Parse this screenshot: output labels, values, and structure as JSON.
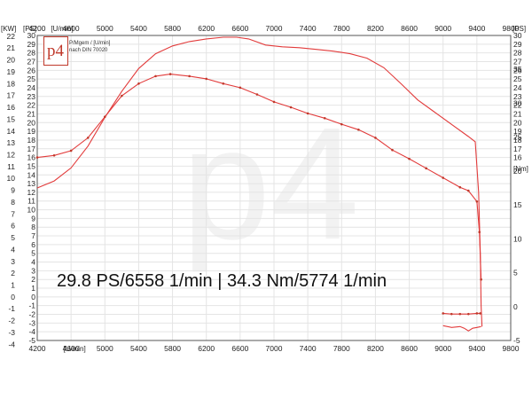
{
  "logo": {
    "mark": "p4",
    "line1": "P/Mgem / [U/min]",
    "line2": "nach DIN 70020"
  },
  "watermark": "p4",
  "summary_text": "29.8 PS/6558 1/min | 34.3 Nm/5774 1/min",
  "chart_data": {
    "type": "line",
    "x_unit_label": "[U/min]",
    "left_units": [
      "[KW]",
      "[PS]"
    ],
    "right_units": [
      "[PS]",
      "[Nm]"
    ],
    "x_ticks": [
      4200,
      4600,
      5000,
      5400,
      5800,
      6200,
      6600,
      7000,
      7400,
      7800,
      8200,
      8600,
      9000,
      9400,
      9800
    ],
    "xlim": [
      4200,
      9800
    ],
    "kw_ticks": [
      -4,
      -3,
      -2,
      -1,
      0,
      1,
      2,
      3,
      4,
      5,
      6,
      7,
      8,
      9,
      10,
      11,
      12,
      13,
      14,
      15,
      16,
      17,
      18,
      19,
      20,
      21,
      22
    ],
    "ps_ticks": [
      -5,
      -4,
      -3,
      -2,
      -1,
      0,
      1,
      2,
      3,
      4,
      5,
      6,
      7,
      8,
      9,
      10,
      11,
      12,
      13,
      14,
      15,
      16,
      17,
      18,
      19,
      20,
      21,
      22,
      23,
      24,
      25,
      26,
      27,
      28,
      29,
      30
    ],
    "ps_right_ticks": [
      16,
      17,
      18,
      19,
      20,
      21,
      22,
      23,
      24,
      25,
      26,
      27,
      28,
      29,
      30
    ],
    "nm_ticks": [
      -5,
      0,
      5,
      10,
      15,
      20,
      25,
      30,
      35
    ],
    "ps_range": [
      -5,
      30
    ],
    "nm_range": [
      -5,
      40
    ],
    "colors": {
      "curve": "#e23b3b",
      "marker": "#c0392b"
    },
    "series": [
      {
        "axis": "PS",
        "x": [
          4200,
          4400,
          4600,
          4800,
          5000,
          5200,
          5400,
          5600,
          5800,
          6000,
          6200,
          6400,
          6558,
          6700,
          6900,
          7100,
          7300,
          7500,
          7700,
          7900,
          8100,
          8300,
          8500,
          8700,
          8900,
          9100,
          9300,
          9380,
          9420,
          9440,
          9450,
          9460
        ],
        "values": [
          12.5,
          13.3,
          14.8,
          17.3,
          20.6,
          23.6,
          26.2,
          27.9,
          28.8,
          29.3,
          29.6,
          29.8,
          29.8,
          29.6,
          28.9,
          28.7,
          28.6,
          28.4,
          28.2,
          27.9,
          27.4,
          26.3,
          24.5,
          22.6,
          21.2,
          19.8,
          18.4,
          17.8,
          12.0,
          5.0,
          -1.0,
          -3.4
        ]
      },
      {
        "axis": "Nm",
        "x": [
          4200,
          4400,
          4600,
          4800,
          5000,
          5200,
          5400,
          5600,
          5774,
          6000,
          6200,
          6400,
          6600,
          6800,
          7000,
          7200,
          7400,
          7600,
          7800,
          8000,
          8200,
          8400,
          8600,
          8800,
          9000,
          9200,
          9300,
          9400,
          9430,
          9450
        ],
        "values": [
          22.0,
          22.3,
          23.0,
          24.9,
          28.0,
          31.1,
          32.9,
          34.0,
          34.3,
          34.0,
          33.6,
          32.9,
          32.3,
          31.3,
          30.2,
          29.4,
          28.5,
          27.8,
          26.9,
          26.1,
          24.9,
          23.1,
          21.8,
          20.4,
          19.0,
          17.6,
          17.1,
          15.5,
          11.0,
          4.0
        ]
      },
      {
        "axis": "Nm",
        "x": [
          9000,
          9100,
          9200,
          9300,
          9400,
          9440
        ],
        "values": [
          -1.0,
          -1.1,
          -1.1,
          -1.1,
          -1.0,
          -1.0
        ]
      },
      {
        "axis": "PS",
        "x": [
          9000,
          9100,
          9200,
          9250,
          9300,
          9350,
          9400,
          9450
        ],
        "values": [
          -3.3,
          -3.5,
          -3.4,
          -3.6,
          -3.9,
          -3.6,
          -3.5,
          -3.4
        ]
      }
    ]
  }
}
